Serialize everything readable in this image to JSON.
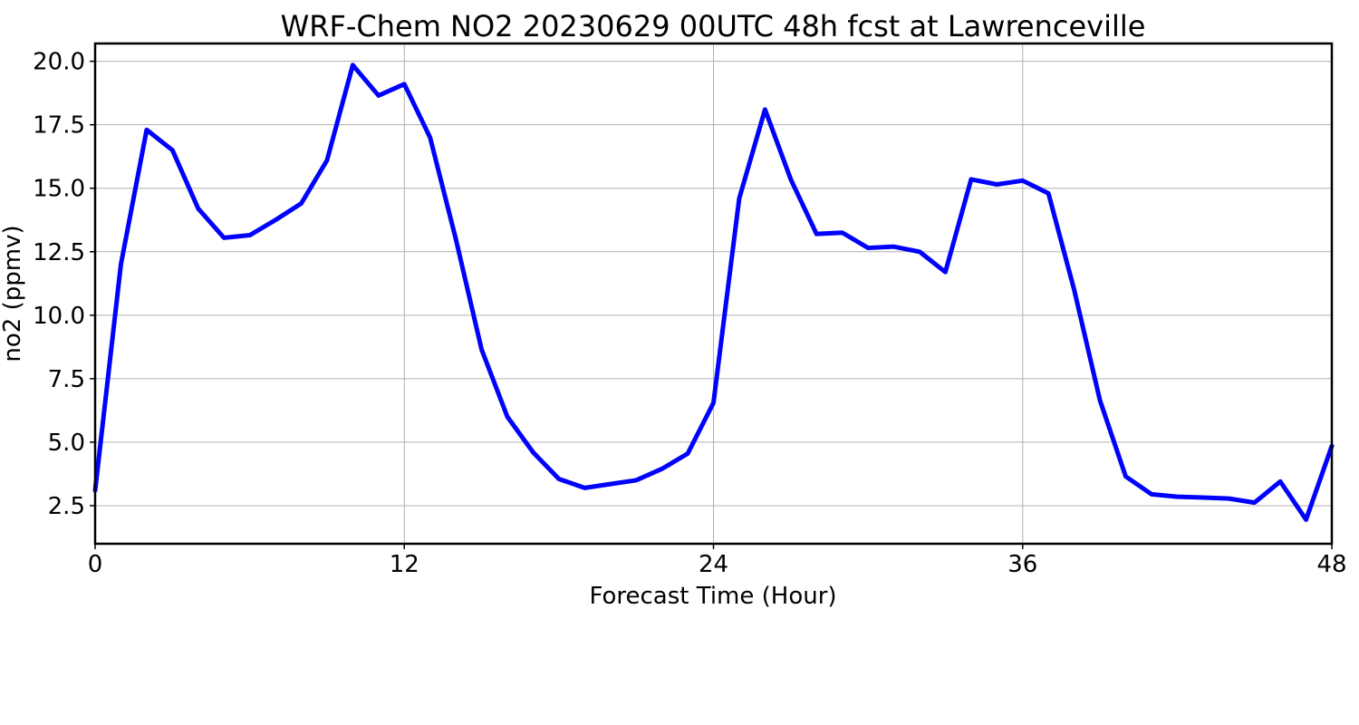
{
  "chart_data": {
    "type": "line",
    "title": "WRF-Chem NO2  20230629 00UTC 48h fcst at Lawrenceville",
    "xlabel": "Forecast Time (Hour)",
    "ylabel": "no2  (ppmv)",
    "xlim": [
      0,
      48
    ],
    "ylim": [
      1.0,
      20.7
    ],
    "xticks": [
      0,
      12,
      24,
      36,
      48
    ],
    "yticks": [
      2.5,
      5.0,
      7.5,
      10.0,
      12.5,
      15.0,
      17.5,
      20.0
    ],
    "grid": true,
    "series_color": "#0000ff",
    "x": [
      0,
      1,
      2,
      3,
      4,
      5,
      6,
      7,
      8,
      9,
      10,
      11,
      12,
      13,
      14,
      15,
      16,
      17,
      18,
      19,
      20,
      21,
      22,
      23,
      24,
      25,
      26,
      27,
      28,
      29,
      30,
      31,
      32,
      33,
      34,
      35,
      36,
      37,
      38,
      39,
      40,
      41,
      42,
      43,
      44,
      45,
      46,
      47,
      48
    ],
    "series": [
      {
        "values": [
          3.1,
          12.0,
          17.3,
          16.5,
          14.2,
          13.05,
          13.15,
          13.75,
          14.4,
          16.1,
          19.85,
          18.65,
          19.1,
          17.0,
          13.0,
          8.65,
          6.0,
          4.6,
          3.55,
          3.2,
          3.35,
          3.5,
          3.95,
          4.55,
          6.55,
          14.6,
          18.1,
          15.35,
          13.2,
          13.25,
          12.65,
          12.7,
          12.5,
          11.7,
          15.35,
          15.15,
          15.3,
          14.8,
          11.0,
          6.65,
          3.65,
          2.95,
          2.85,
          2.82,
          2.78,
          2.62,
          3.45,
          1.95,
          4.85
        ]
      }
    ]
  }
}
